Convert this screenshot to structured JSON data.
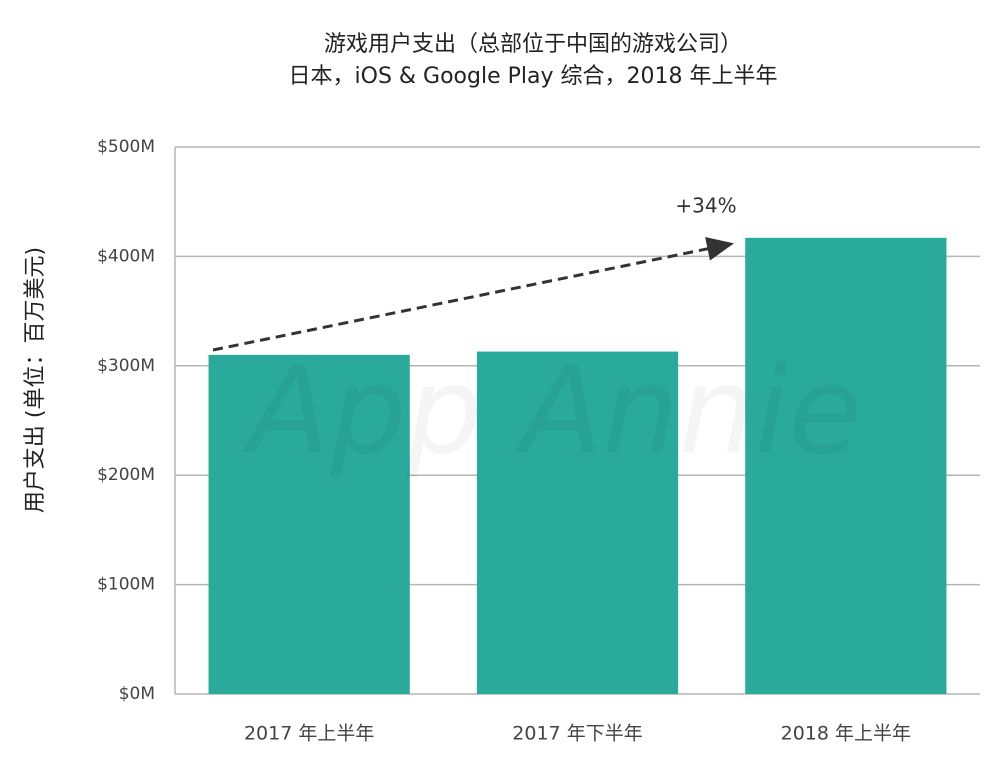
{
  "chart_data": {
    "type": "bar",
    "title": "游戏用户支出（总部位于中国的游戏公司）",
    "subtitle": "日本，iOS & Google Play 综合，2018 年上半年",
    "y_label": "用户支出 (单位：百万美元)",
    "annotation": "+34%",
    "watermark": "App Annie",
    "categories": [
      "2017 年上半年",
      "2017 年下半年",
      "2018 年上半年"
    ],
    "values": [
      310,
      313,
      417
    ],
    "color": "#2aaa9a",
    "ylim": [
      0,
      500
    ],
    "yticks": [
      {
        "value": 0,
        "label": "$0M"
      },
      {
        "value": 100,
        "label": "$100M"
      },
      {
        "value": 200,
        "label": "$200M"
      },
      {
        "value": 300,
        "label": "$300M"
      },
      {
        "value": 400,
        "label": "$400M"
      },
      {
        "value": 500,
        "label": "$500M"
      }
    ],
    "grid": true
  }
}
